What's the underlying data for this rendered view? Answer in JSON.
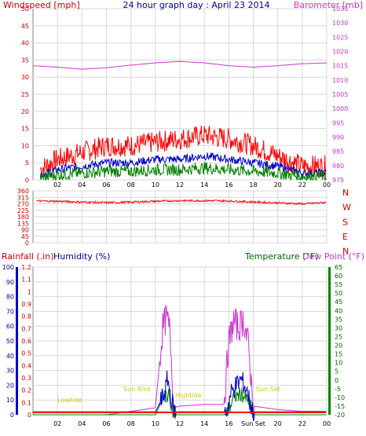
{
  "chart_data": [
    {
      "panel": "top",
      "type": "line",
      "title": "24 hour graph day : April 23 2014",
      "left_axis_label": "Windspeed [mph]",
      "right_axis_label": "Barometer [mb]",
      "x_ticks": [
        "02",
        "04",
        "06",
        "08",
        "10",
        "12",
        "14",
        "16",
        "18",
        "20",
        "22",
        "00"
      ],
      "left_ticks": [
        0,
        5,
        10,
        15,
        20,
        25,
        30,
        35,
        40,
        45,
        50
      ],
      "right_ticks": [
        975,
        980,
        985,
        990,
        995,
        1000,
        1005,
        1010,
        1015,
        1020,
        1025,
        1030,
        1035
      ],
      "ylim_left": [
        0,
        50
      ],
      "ylim_right": [
        975,
        1035
      ],
      "colors": {
        "gust": "#ff0000",
        "average": "#0000cc",
        "min": "#008000",
        "barometer": "#cc33cc"
      },
      "series": [
        {
          "key": "gust",
          "hours": [
            0,
            2,
            4,
            6,
            8,
            10,
            12,
            14,
            16,
            18,
            20,
            22,
            24
          ],
          "values": [
            2,
            6,
            8,
            10,
            10,
            11,
            12,
            13,
            12,
            10,
            7,
            4,
            4
          ]
        },
        {
          "key": "average",
          "hours": [
            0,
            2,
            4,
            6,
            8,
            10,
            12,
            14,
            16,
            18,
            20,
            22,
            24
          ],
          "values": [
            1,
            3,
            4,
            5,
            5,
            6,
            6,
            7,
            6,
            5,
            4,
            2,
            2
          ]
        },
        {
          "key": "min",
          "hours": [
            0,
            2,
            4,
            6,
            8,
            10,
            12,
            14,
            16,
            18,
            20,
            22,
            24
          ],
          "values": [
            0,
            1.5,
            2,
            2.5,
            2.5,
            3,
            3,
            3.5,
            3,
            2.5,
            2,
            1,
            1
          ]
        },
        {
          "key": "barometer",
          "hours": [
            0,
            2,
            4,
            6,
            8,
            10,
            12,
            14,
            16,
            18,
            20,
            22,
            24
          ],
          "values": [
            1015,
            1014.5,
            1013.8,
            1014.3,
            1015.2,
            1016,
            1016.5,
            1016,
            1015,
            1014.5,
            1015,
            1015.7,
            1016
          ]
        }
      ]
    },
    {
      "panel": "middle",
      "type": "line",
      "left_ticks": [
        0,
        45,
        90,
        135,
        180,
        225,
        270,
        315,
        360
      ],
      "ylim": [
        0,
        360
      ],
      "direction_labels": [
        "N",
        "W",
        "S",
        "E",
        "N"
      ],
      "colors": {
        "direction": "#ff0000"
      },
      "series": [
        {
          "key": "direction",
          "hours": [
            0,
            2,
            4,
            6,
            8,
            10,
            12,
            14,
            16,
            18,
            20,
            22,
            24
          ],
          "values": [
            290,
            288,
            282,
            278,
            282,
            288,
            292,
            292,
            290,
            283,
            277,
            270,
            280
          ]
        }
      ]
    },
    {
      "panel": "bottom",
      "type": "line",
      "left_axis_label": "Rainfall (.in)",
      "humidity_label": "Humidity (%)",
      "temperature_label": "Temperature (°F)",
      "dewpoint_label": "Dew Point (°F)",
      "x_ticks": [
        "02",
        "04",
        "06",
        "08",
        "10",
        "12",
        "14",
        "16",
        "Sun Set",
        "20",
        "22",
        "00"
      ],
      "rain_ticks": [
        "0",
        "0.1",
        "0.2",
        "0.3",
        "0.4",
        "0.5",
        "0.6",
        "0.7",
        "0.8",
        "0.9",
        "1",
        "1.1",
        "1.2"
      ],
      "humidity_ticks": [
        0,
        10,
        20,
        30,
        40,
        50,
        60,
        70,
        80,
        90,
        100
      ],
      "temp_ticks": [
        -20,
        -15,
        -10,
        -5,
        0,
        5,
        10,
        15,
        20,
        25,
        30,
        35,
        40,
        45,
        50,
        55,
        60,
        65
      ],
      "ylim_humidity": [
        0,
        100
      ],
      "ylim_temp": [
        -20,
        65
      ],
      "annotations": [
        "Lowtide",
        "Sun Rise",
        "Hightide",
        "Sun Set"
      ],
      "colors": {
        "humidity": "#0000cc",
        "temperature": "#008000",
        "dewpoint": "#cc33cc",
        "rainfall": "#ff0000",
        "annotation": "#cccc00"
      },
      "series": [
        {
          "key": "dewpoint",
          "hours": [
            0,
            2,
            4,
            6,
            8,
            10,
            10.6,
            10.9,
            11.2,
            11.5,
            12,
            14,
            15.6,
            16,
            16.4,
            16.8,
            17.2,
            17.6,
            18,
            20,
            22,
            24
          ],
          "values": [
            -20,
            -20,
            -20,
            -20,
            -18,
            -16,
            30,
            36,
            28,
            -16,
            -15,
            -14,
            -14,
            22,
            34,
            30,
            35,
            20,
            -15,
            -17,
            -18,
            -18
          ]
        },
        {
          "key": "temperature",
          "hours": [
            0,
            10,
            10.8,
            11.2,
            11.5,
            15.8,
            16.4,
            17,
            17.6,
            18,
            24
          ],
          "values": [
            -20,
            -20,
            -8,
            -10,
            -20,
            -20,
            -10,
            -8,
            -12,
            -20,
            -20
          ]
        },
        {
          "key": "humidity",
          "hours": [
            0,
            10,
            10.8,
            11,
            11.3,
            11.6,
            15.8,
            16.2,
            16.6,
            17,
            17.4,
            17.8,
            18,
            24
          ],
          "values": [
            2,
            2,
            15,
            25,
            10,
            2,
            2,
            15,
            20,
            24,
            18,
            6,
            2,
            2
          ]
        },
        {
          "key": "rainfall",
          "hours": [
            0,
            24
          ],
          "values": [
            0.02,
            0.02
          ]
        }
      ]
    }
  ]
}
